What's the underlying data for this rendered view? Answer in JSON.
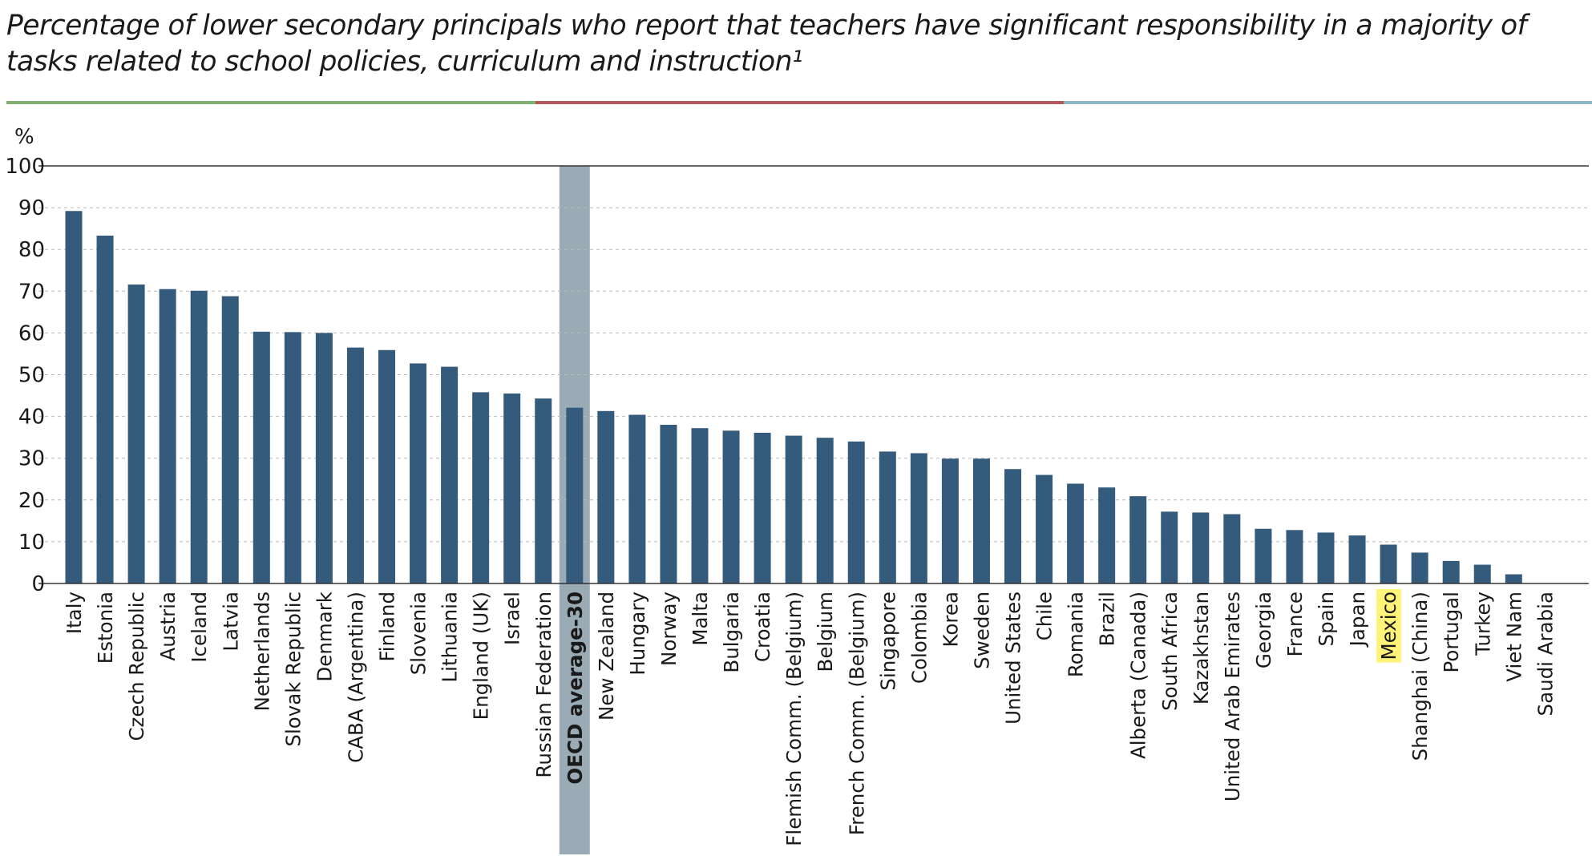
{
  "title": "Percentage of lower secondary principals who report that teachers have significant responsibility in a majority of tasks related to school policies, curriculum and instruction¹",
  "rule_colors": [
    "#7fb173",
    "#b3585c",
    "#8fb9c9"
  ],
  "colors": {
    "bar": "#345a7c",
    "average_band": "#9aabb6",
    "highlight": "#fff37a",
    "axis": "#333333",
    "gridline": "#bbbbbb"
  },
  "chart_data": {
    "type": "bar",
    "title": "Percentage of lower secondary principals who report that teachers have significant responsibility in a majority of tasks related to school policies, curriculum and instruction¹",
    "xlabel": "",
    "ylabel": "%",
    "ylim": [
      0,
      100
    ],
    "yticks": [
      0,
      10,
      20,
      30,
      40,
      50,
      60,
      70,
      80,
      90,
      100
    ],
    "grid": "horizontal-dashed",
    "legend": "none",
    "categories": [
      "Italy",
      "Estonia",
      "Czech Republic",
      "Austria",
      "Iceland",
      "Latvia",
      "Netherlands",
      "Slovak Republic",
      "Denmark",
      "CABA (Argentina)",
      "Finland",
      "Slovenia",
      "Lithuania",
      "England (UK)",
      "Israel",
      "Russian Federation",
      "OECD average-30",
      "New Zealand",
      "Hungary",
      "Norway",
      "Malta",
      "Bulgaria",
      "Croatia",
      "Flemish Comm. (Belgium)",
      "Belgium",
      "French Comm. (Belgium)",
      "Singapore",
      "Colombia",
      "Korea",
      "Sweden",
      "United States",
      "Chile",
      "Romania",
      "Brazil",
      "Alberta (Canada)",
      "South Africa",
      "Kazakhstan",
      "United Arab Emirates",
      "Georgia",
      "France",
      "Spain",
      "Japan",
      "Mexico",
      "Shanghai (China)",
      "Portugal",
      "Turkey",
      "Viet Nam",
      "Saudi Arabia"
    ],
    "values": [
      89.2,
      83.3,
      71.6,
      70.5,
      70.1,
      68.8,
      60.3,
      60.2,
      60.0,
      56.5,
      55.9,
      52.7,
      51.9,
      45.8,
      45.5,
      44.3,
      42.1,
      41.3,
      40.4,
      38.0,
      37.2,
      36.6,
      36.1,
      35.4,
      34.9,
      34.0,
      31.6,
      31.2,
      29.9,
      29.9,
      27.4,
      26.0,
      23.9,
      23.0,
      20.9,
      17.2,
      17.0,
      16.6,
      13.1,
      12.8,
      12.2,
      11.5,
      9.3,
      7.4,
      5.4,
      4.5,
      2.2,
      0.0
    ],
    "average_category": "OECD average-30",
    "highlighted_category": "Mexico"
  }
}
